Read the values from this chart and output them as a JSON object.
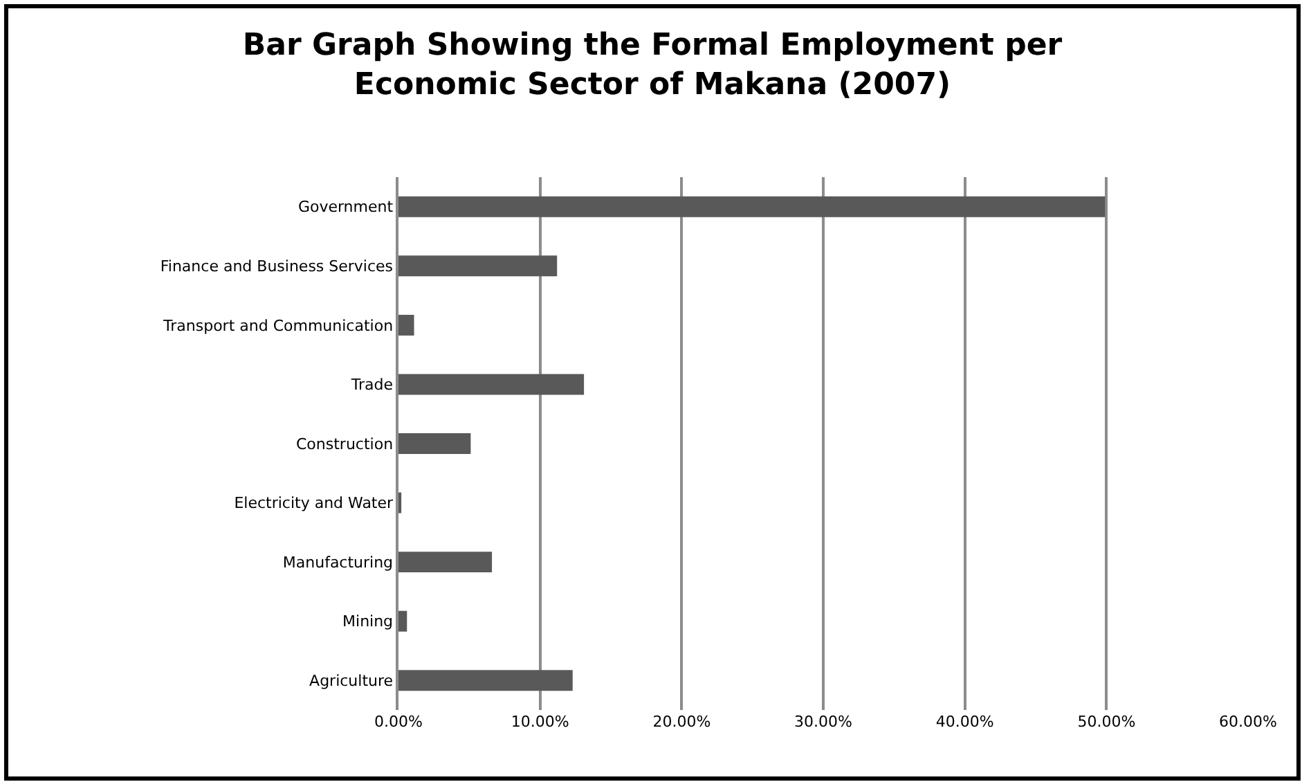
{
  "chart_data": {
    "type": "bar",
    "orientation": "horizontal",
    "title": "Bar Graph Showing the Formal Employment per\nEconomic Sector of Makana (2007)",
    "categories": [
      "Government",
      "Finance and Business Services",
      "Transport and Communication",
      "Trade",
      "Construction",
      "Electricity and Water",
      "Manufacturing",
      "Mining",
      "Agriculture"
    ],
    "values": [
      49.9,
      11.2,
      1.1,
      13.1,
      5.1,
      0.2,
      6.6,
      0.6,
      12.3
    ],
    "color": "#595959",
    "xlim": [
      0,
      60
    ],
    "xticks": [
      {
        "value": 0,
        "label": "0.00%"
      },
      {
        "value": 10,
        "label": "10.00%"
      },
      {
        "value": 20,
        "label": "20.00%"
      },
      {
        "value": 30,
        "label": "30.00%"
      },
      {
        "value": 40,
        "label": "40.00%"
      },
      {
        "value": 50,
        "label": "50.00%"
      },
      {
        "value": 60,
        "label": "60.00%"
      }
    ],
    "grid": "x"
  }
}
